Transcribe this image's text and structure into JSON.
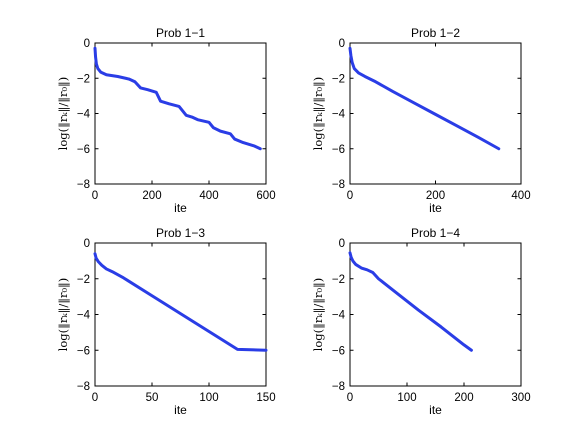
{
  "chart_data": [
    {
      "type": "line",
      "title": "Prob 1−1",
      "xlabel": "ite",
      "ylabel": "log(‖rₖ‖/‖r₀‖)",
      "xlim": [
        0,
        600
      ],
      "ylim": [
        -8,
        0
      ],
      "xticks": [
        "0",
        "200",
        "400",
        "600"
      ],
      "yticks": [
        "0",
        "−2",
        "−4",
        "−6",
        "−8"
      ],
      "grid": false,
      "color": "#2a3de6",
      "series": [
        {
          "x": [
            0,
            2,
            5,
            10,
            20,
            40,
            80,
            120,
            140,
            160,
            185,
            215,
            230,
            260,
            295,
            320,
            340,
            360,
            400,
            415,
            440,
            475,
            490,
            520,
            560,
            580
          ],
          "y": [
            -0.3,
            -0.8,
            -1.2,
            -1.45,
            -1.65,
            -1.8,
            -1.9,
            -2.05,
            -2.2,
            -2.55,
            -2.65,
            -2.8,
            -3.3,
            -3.45,
            -3.6,
            -4.1,
            -4.2,
            -4.35,
            -4.5,
            -4.8,
            -5.0,
            -5.15,
            -5.45,
            -5.65,
            -5.85,
            -6.0
          ]
        }
      ]
    },
    {
      "type": "line",
      "title": "Prob 1−2",
      "xlabel": "ite",
      "ylabel": "log(‖rₖ‖/‖r₀‖)",
      "xlim": [
        0,
        400
      ],
      "ylim": [
        -8,
        0
      ],
      "xticks": [
        "0",
        "200",
        "400"
      ],
      "yticks": [
        "0",
        "−2",
        "−4",
        "−6",
        "−8"
      ],
      "grid": false,
      "color": "#2a3de6",
      "series": [
        {
          "x": [
            0,
            2,
            5,
            10,
            20,
            35,
            60,
            100,
            150,
            200,
            250,
            300,
            348
          ],
          "y": [
            -0.3,
            -0.7,
            -1.1,
            -1.45,
            -1.7,
            -1.9,
            -2.2,
            -2.75,
            -3.4,
            -4.05,
            -4.7,
            -5.35,
            -6.0
          ]
        }
      ]
    },
    {
      "type": "line",
      "title": "Prob 1−3",
      "xlabel": "ite",
      "ylabel": "log(‖rₖ‖/‖r₀‖)",
      "xlim": [
        0,
        150
      ],
      "ylim": [
        -8,
        0
      ],
      "xticks": [
        "0",
        "50",
        "100",
        "150"
      ],
      "yticks": [
        "0",
        "−2",
        "−4",
        "−6",
        "−8"
      ],
      "grid": false,
      "color": "#2a3de6",
      "series": [
        {
          "x": [
            0,
            1,
            3,
            6,
            10,
            15,
            25,
            50,
            75,
            100,
            125,
            150
          ],
          "y": [
            -0.6,
            -0.85,
            -1.05,
            -1.25,
            -1.45,
            -1.6,
            -1.95,
            -2.95,
            -3.95,
            -4.95,
            -5.95,
            -6.0
          ]
        }
      ]
    },
    {
      "type": "line",
      "title": "Prob 1−4",
      "xlabel": "ite",
      "ylabel": "log(‖rₖ‖/‖r₀‖)",
      "xlim": [
        0,
        300
      ],
      "ylim": [
        -8,
        0
      ],
      "xticks": [
        "0",
        "100",
        "200",
        "300"
      ],
      "yticks": [
        "0",
        "−2",
        "−4",
        "−6",
        "−8"
      ],
      "grid": false,
      "color": "#2a3de6",
      "series": [
        {
          "x": [
            0,
            2,
            5,
            10,
            20,
            30,
            40,
            50,
            80,
            120,
            160,
            200,
            213
          ],
          "y": [
            -0.55,
            -0.8,
            -1.0,
            -1.2,
            -1.4,
            -1.5,
            -1.65,
            -2.0,
            -2.75,
            -3.75,
            -4.7,
            -5.7,
            -6.0
          ]
        }
      ]
    }
  ]
}
